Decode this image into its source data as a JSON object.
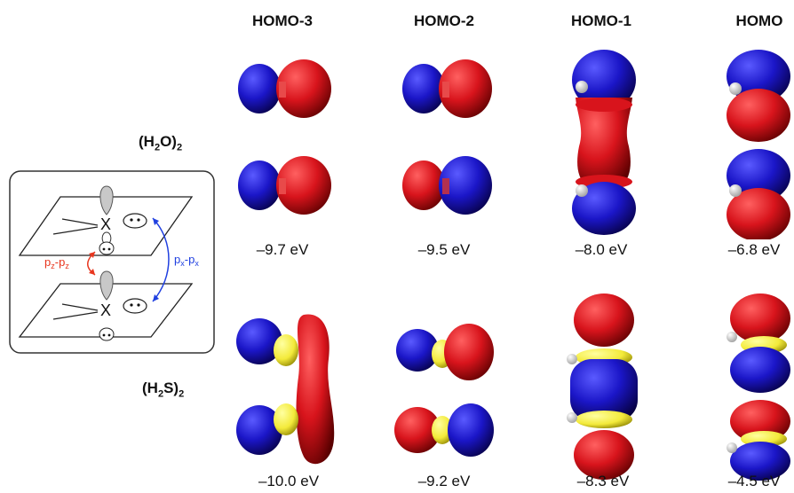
{
  "columns": {
    "homo3": "HOMO-3",
    "homo2": "HOMO-2",
    "homo1": "HOMO-1",
    "homo": "HOMO"
  },
  "rows": {
    "water": {
      "formula_main": "(H",
      "sub1": "2",
      "formula_mid": "O)",
      "sub2": "2"
    },
    "h2s": {
      "formula_main": "(H",
      "sub1": "2",
      "formula_mid": "S)",
      "sub2": "2"
    }
  },
  "energies": {
    "water": [
      "–9.7 eV",
      "–9.5 eV",
      "–8.0 eV",
      "–6.8 eV"
    ],
    "h2s": [
      "–10.0 eV",
      "–9.2 eV",
      "–8.3 eV",
      "–4.5 eV"
    ]
  },
  "scheme": {
    "atom_top": "X",
    "atom_bottom": "X",
    "pz_label_main": "p",
    "pz_sub": "z",
    "pz_dash": "-",
    "px_label_main": "p",
    "px_sub": "x",
    "px_dash": "-"
  },
  "colors": {
    "lobe_red": "#d8141c",
    "lobe_blue": "#1b16c8",
    "sulfur": "#f3ea3a",
    "pz_arrow": "#e8361e",
    "px_arrow": "#2040e0"
  }
}
